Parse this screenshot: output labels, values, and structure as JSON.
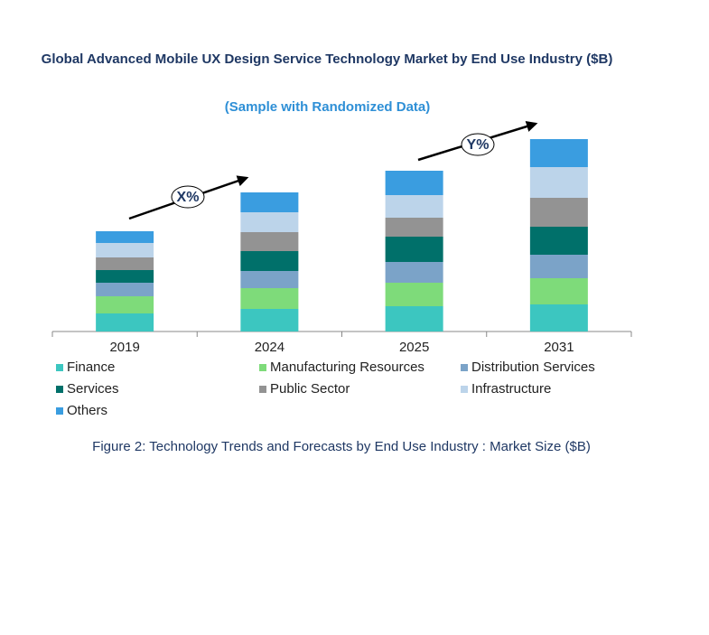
{
  "chart_data": {
    "type": "stacked-bar",
    "title": "Global Advanced Mobile UX Design Service Technology Market by End Use Industry ($B)",
    "subtitle": "(Sample with Randomized Data)",
    "caption": "Figure 2: Technology Trends and Forecasts by End Use Industry : Market Size ($B)",
    "annotations": [
      "X%",
      "Y%"
    ],
    "categories": [
      "2019",
      "2024",
      "2025",
      "2031"
    ],
    "ylim": [
      0,
      213
    ],
    "series": [
      {
        "name": "Finance",
        "color": "#3cc6c0",
        "values": [
          20,
          25,
          28,
          30
        ]
      },
      {
        "name": "Manufacturing Resources",
        "color": "#7edb7a",
        "values": [
          19,
          23,
          26,
          29
        ]
      },
      {
        "name": "Distribution Services",
        "color": "#7ba3c8",
        "values": [
          15,
          19,
          23,
          26
        ]
      },
      {
        "name": "Services",
        "color": "#00706a",
        "values": [
          14,
          22,
          28,
          31
        ]
      },
      {
        "name": "Public Sector",
        "color": "#939393",
        "values": [
          14,
          21,
          21,
          32
        ]
      },
      {
        "name": "Infrastructure",
        "color": "#bcd4ea",
        "values": [
          16,
          22,
          25,
          34
        ]
      },
      {
        "name": "Others",
        "color": "#3a9de0",
        "values": [
          13,
          22,
          27,
          31
        ]
      }
    ]
  }
}
